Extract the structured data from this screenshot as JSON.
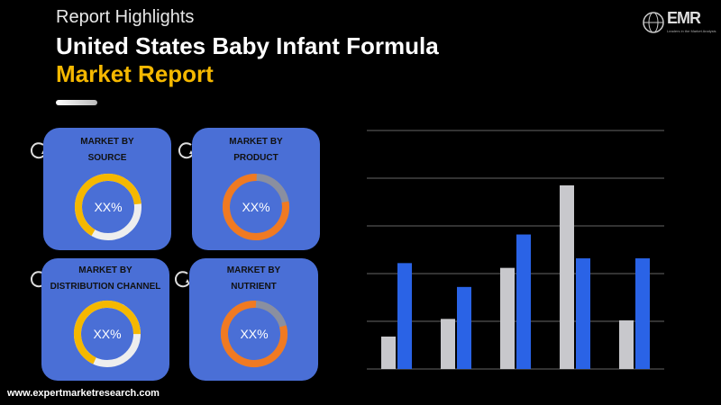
{
  "header": {
    "subtitle": "Report Highlights",
    "title_line1": "United States Baby Infant Formula",
    "title_line2": "Market Report"
  },
  "logo": {
    "mark": "EMR",
    "tagline": "Leaders in the Market Analysis"
  },
  "footer": {
    "url": "www.expertmarketresearch.com"
  },
  "cards": [
    {
      "line1": "MARKET BY",
      "line2": "SOURCE",
      "value": "XX%",
      "ring_color": "#f5b800"
    },
    {
      "line1": "MARKET BY",
      "line2": "PRODUCT",
      "value": "XX%",
      "ring_color": "#f07a22"
    },
    {
      "line1": "MARKET BY",
      "line2": "DISTRIBUTION CHANNEL",
      "value": "XX%",
      "ring_color": "#f5b800"
    },
    {
      "line1": "MARKET BY",
      "line2": "NUTRIENT",
      "value": "XX%",
      "ring_color": "#f07a22"
    }
  ],
  "colors": {
    "card_bg": "#4a6fd6",
    "series_gray": "#c8c8cc",
    "series_blue": "#2a63e6",
    "gridline": "#666666"
  },
  "chart_data": {
    "type": "bar",
    "title": "",
    "xlabel": "",
    "ylabel": "",
    "grid": true,
    "ylim": [
      0,
      5
    ],
    "categories": [
      "",
      "",
      "",
      "",
      ""
    ],
    "series": [
      {
        "values": [
          0.68,
          1.05,
          2.12,
          3.85,
          1.02
        ]
      },
      {
        "values": [
          2.22,
          1.72,
          2.82,
          2.32,
          2.32
        ]
      }
    ]
  }
}
